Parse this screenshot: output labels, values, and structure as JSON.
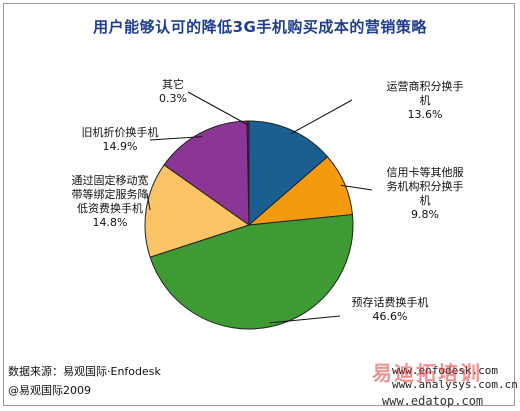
{
  "title": "用户能够认可的降低3G手机购买成本的营销策略",
  "chart_data": {
    "type": "pie",
    "title": "用户能够认可的降低3G手机购买成本的营销策略",
    "slices": [
      {
        "label_lines": [
          "运营商积分换手",
          "机"
        ],
        "pct_label": "13.6%",
        "value": 13.6,
        "color": "#1a5f90"
      },
      {
        "label_lines": [
          "信用卡等其他服",
          "务机构积分换手",
          "机"
        ],
        "pct_label": "9.8%",
        "value": 9.8,
        "color": "#f49a0e"
      },
      {
        "label_lines": [
          "预存话费换手机"
        ],
        "pct_label": "46.6%",
        "value": 46.6,
        "color": "#3e9a32"
      },
      {
        "label_lines": [
          "通过固定移动宽",
          "带等绑定服务降",
          "低资费换手机"
        ],
        "pct_label": "14.8%",
        "value": 14.8,
        "color": "#fbc567"
      },
      {
        "label_lines": [
          "旧机折价换手机"
        ],
        "pct_label": "14.9%",
        "value": 14.9,
        "color": "#8b3597"
      },
      {
        "label_lines": [
          "其它"
        ],
        "pct_label": "0.3%",
        "value": 0.3,
        "color": "#2a2a6a"
      }
    ]
  },
  "footer": {
    "source": "数据来源：易观国际·Enfodesk",
    "copyright": "@易观国际2009"
  },
  "watermark": {
    "url1": "www.enfodesk.com",
    "url2": "www.analysys.com.cn",
    "url3": "www.edatop.com",
    "logo": "易迪拓培训"
  }
}
